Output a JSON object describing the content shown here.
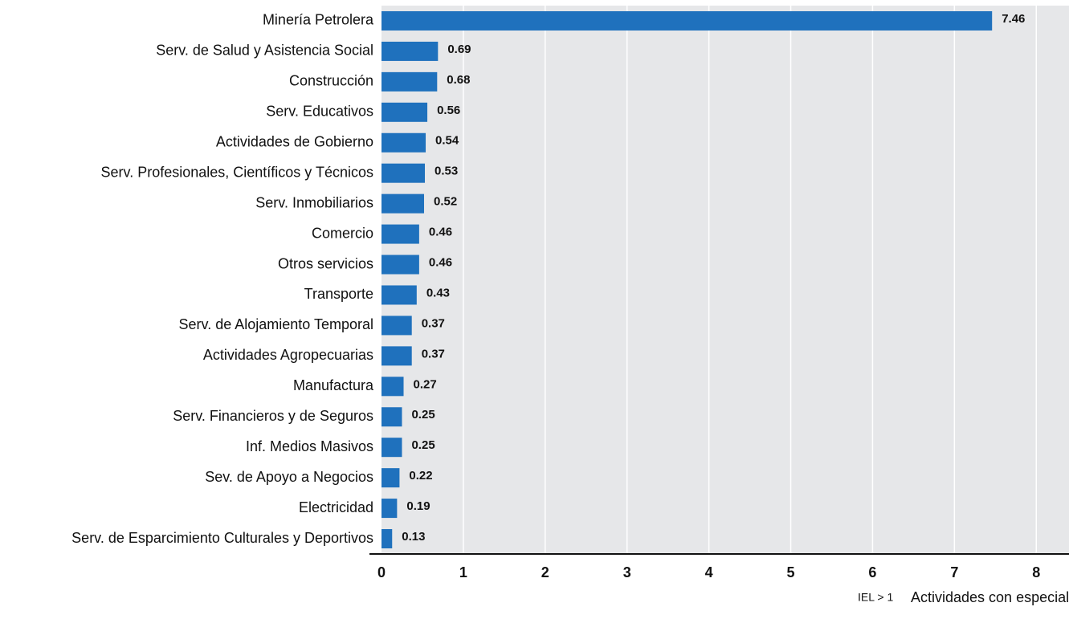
{
  "chart_data": {
    "type": "bar",
    "orientation": "horizontal",
    "categories": [
      "Minería Petrolera",
      "Serv. de Salud y Asistencia Social",
      "Construcción",
      "Serv. Educativos",
      "Actividades de Gobierno",
      "Serv. Profesionales, Científicos y Técnicos",
      "Serv. Inmobiliarios",
      "Comercio",
      "Otros servicios",
      "Transporte",
      "Serv. de Alojamiento Temporal",
      "Actividades Agropecuarias",
      "Manufactura",
      "Serv. Financieros y de Seguros",
      "Inf. Medios Masivos",
      "Sev. de Apoyo a Negocios",
      "Electricidad",
      "Serv. de Esparcimiento Culturales y Deportivos"
    ],
    "values": [
      7.46,
      0.69,
      0.68,
      0.56,
      0.54,
      0.53,
      0.52,
      0.46,
      0.46,
      0.43,
      0.37,
      0.37,
      0.27,
      0.25,
      0.25,
      0.22,
      0.19,
      0.13
    ],
    "color": "#1f71bd",
    "xlim": [
      0,
      8.4
    ],
    "xticks": [
      0,
      1,
      2,
      3,
      4,
      5,
      6,
      7,
      8
    ],
    "grid": true,
    "annotations": [
      "IEL > 1",
      "Actividades con especialización"
    ]
  }
}
